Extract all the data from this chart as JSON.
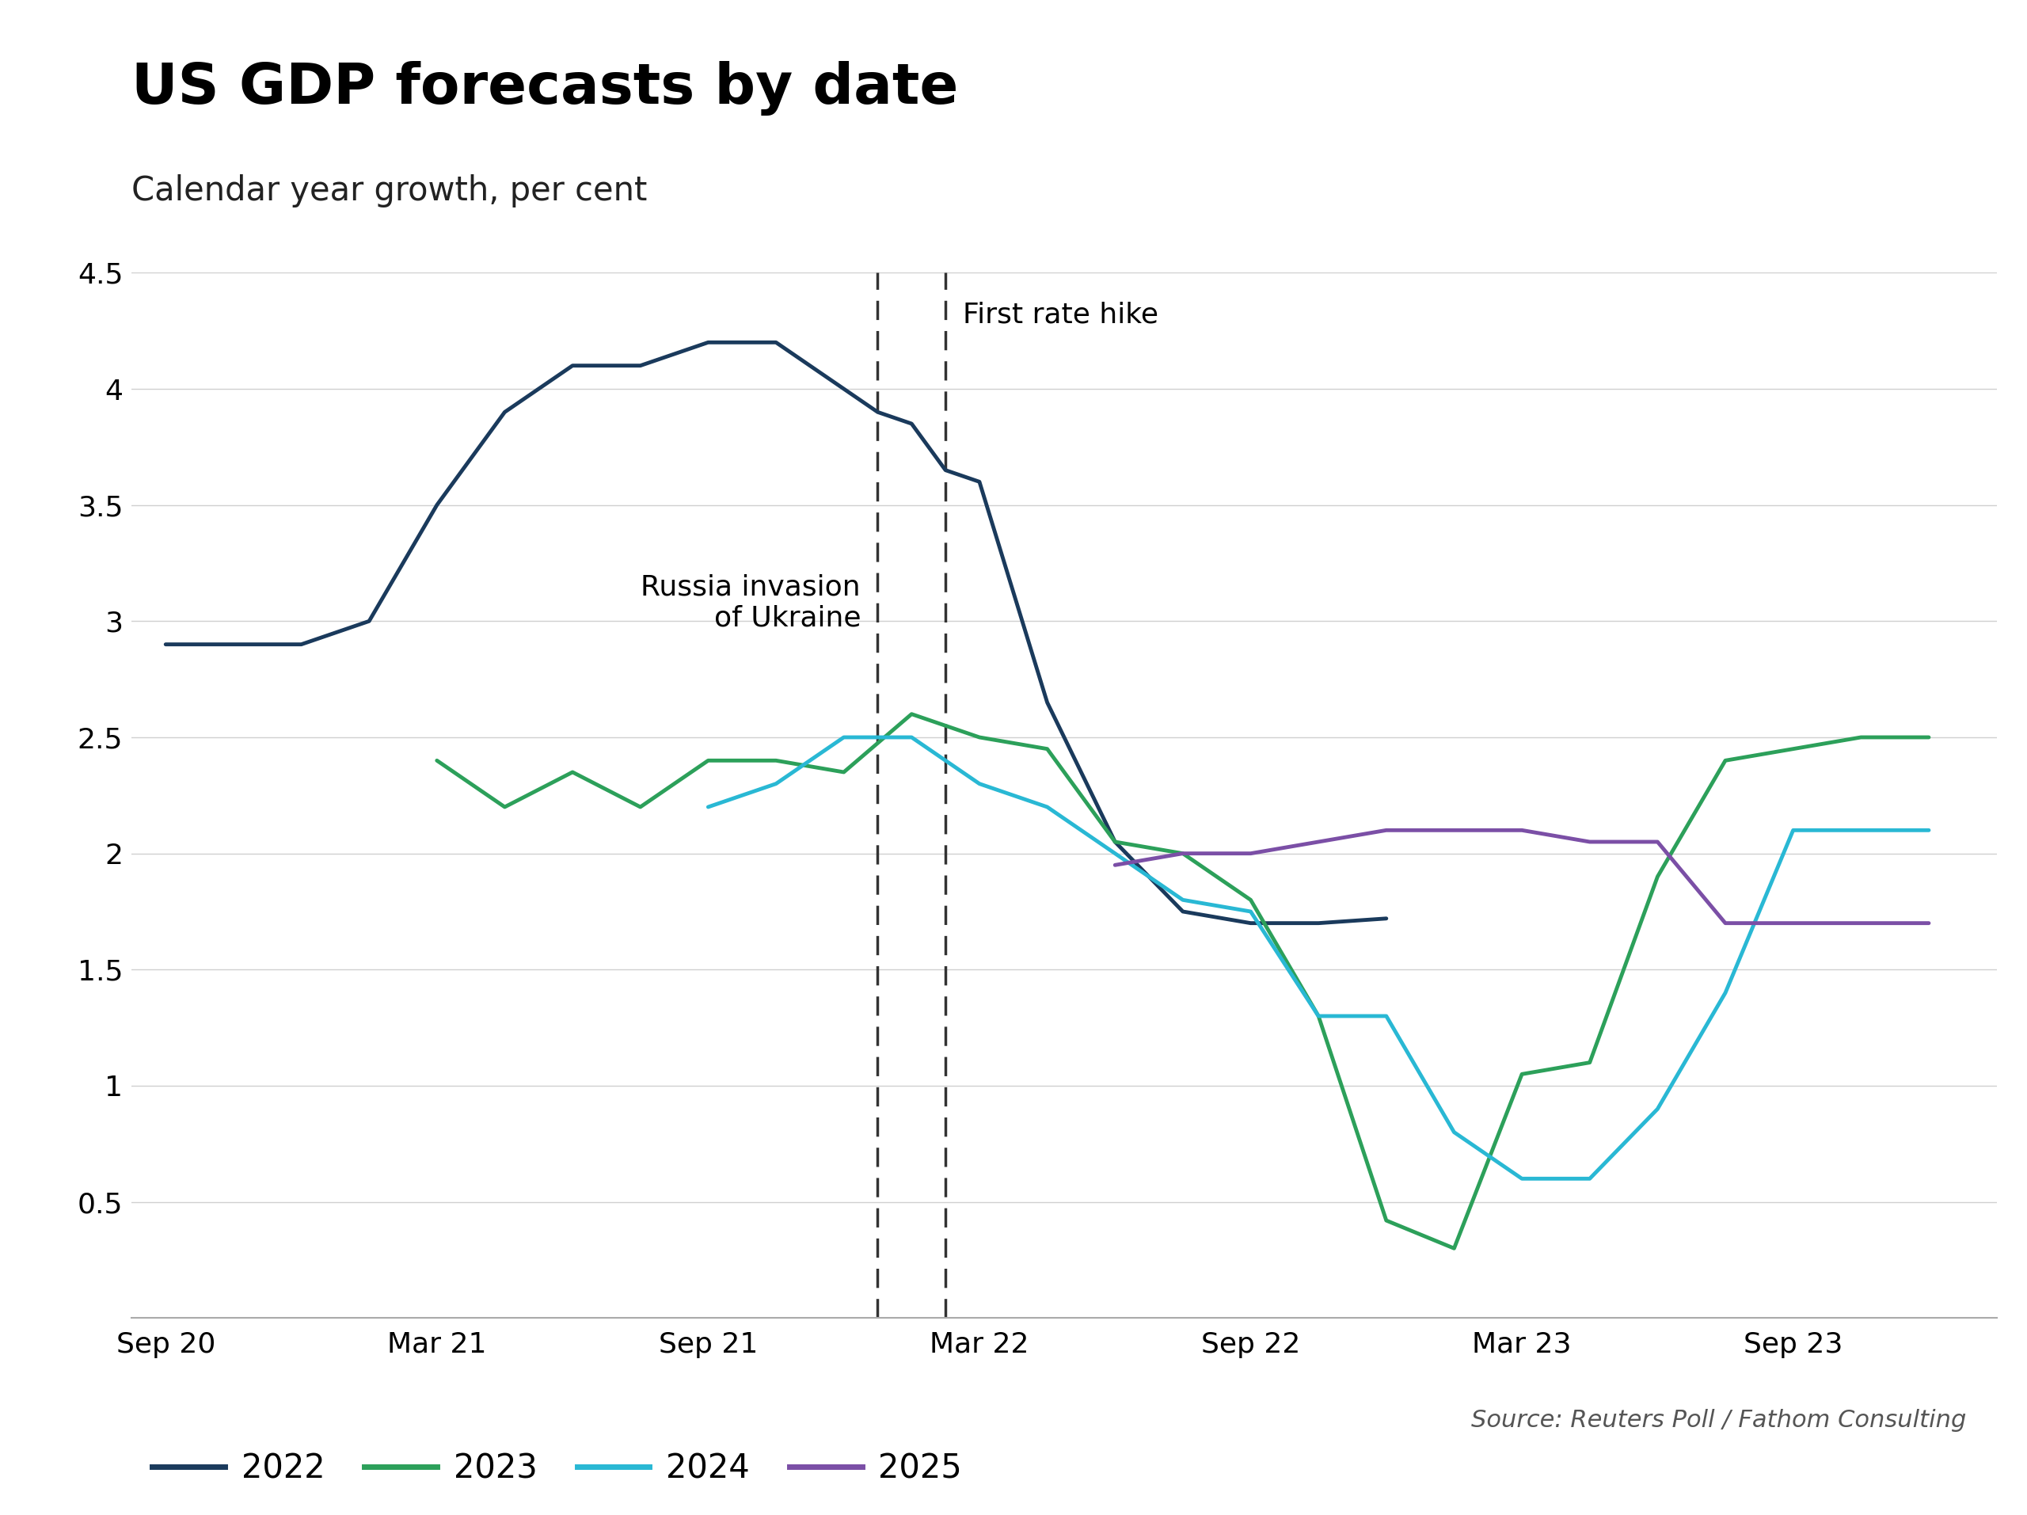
{
  "title": "US GDP forecasts by date",
  "subtitle": "Calendar year growth, per cent",
  "source": "Source: Reuters Poll / Fathom Consulting",
  "background_color": "#ffffff",
  "title_fontsize": 52,
  "subtitle_fontsize": 30,
  "annotation_russia": "Russia invasion\nof Ukraine",
  "annotation_rate": "First rate hike",
  "vline_russia": 10.5,
  "vline_rate": 11.5,
  "ylim": [
    0,
    4.5
  ],
  "yticks": [
    0,
    0.5,
    1.0,
    1.5,
    2.0,
    2.5,
    3.0,
    3.5,
    4.0,
    4.5
  ],
  "xtick_labels": [
    "Sep 20",
    "Mar 21",
    "Sep 21",
    "Mar 22",
    "Sep 22",
    "Mar 23",
    "Sep 23"
  ],
  "xtick_positions": [
    0,
    4,
    8,
    12,
    16,
    20,
    24
  ],
  "xlim": [
    -0.5,
    27
  ],
  "series": {
    "2022": {
      "color": "#1a3a5c",
      "linewidth": 3.5,
      "x": [
        0,
        1,
        2,
        3,
        4,
        5,
        6,
        7,
        8,
        9,
        10,
        10.5,
        11,
        11.5,
        12,
        13,
        14,
        15,
        16,
        17,
        18
      ],
      "y": [
        2.9,
        2.9,
        2.9,
        3.0,
        3.5,
        3.9,
        4.1,
        4.1,
        4.2,
        4.2,
        4.0,
        3.9,
        3.85,
        3.65,
        3.6,
        2.65,
        2.05,
        1.75,
        1.7,
        1.7,
        1.72
      ]
    },
    "2023": {
      "color": "#2ca05a",
      "linewidth": 3.5,
      "x": [
        4,
        5,
        6,
        7,
        8,
        9,
        10,
        11,
        12,
        13,
        14,
        15,
        16,
        17,
        18,
        19,
        20,
        21,
        22,
        23,
        24,
        25,
        26
      ],
      "y": [
        2.4,
        2.2,
        2.35,
        2.2,
        2.4,
        2.4,
        2.35,
        2.6,
        2.5,
        2.45,
        2.05,
        2.0,
        1.8,
        1.3,
        0.42,
        0.3,
        1.05,
        1.1,
        1.9,
        2.4,
        2.45,
        2.5,
        2.5
      ]
    },
    "2024": {
      "color": "#29b8d4",
      "linewidth": 3.5,
      "x": [
        8,
        9,
        10,
        11,
        12,
        13,
        14,
        15,
        16,
        17,
        18,
        19,
        20,
        21,
        22,
        23,
        24,
        25,
        26
      ],
      "y": [
        2.2,
        2.3,
        2.5,
        2.5,
        2.3,
        2.2,
        2.0,
        1.8,
        1.75,
        1.3,
        1.3,
        0.8,
        0.6,
        0.6,
        0.9,
        1.4,
        2.1,
        2.1,
        2.1
      ]
    },
    "2025": {
      "color": "#7b4fa6",
      "linewidth": 3.5,
      "x": [
        14,
        15,
        16,
        17,
        18,
        19,
        20,
        21,
        22,
        23,
        24,
        25,
        26
      ],
      "y": [
        1.95,
        2.0,
        2.0,
        2.05,
        2.1,
        2.1,
        2.1,
        2.05,
        2.05,
        1.7,
        1.7,
        1.7,
        1.7
      ]
    }
  }
}
